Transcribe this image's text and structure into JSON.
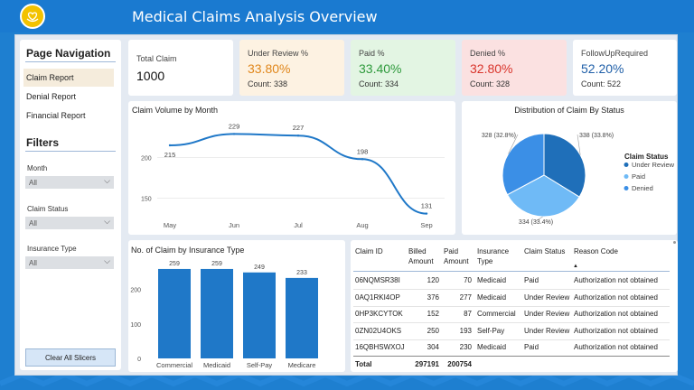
{
  "header": {
    "title": "Medical Claims Analysis Overview",
    "logo_icon": "heart-hands-icon"
  },
  "colors": {
    "accent": "#1a7ad0",
    "review_bg": "#fdf2e2",
    "paid_bg": "#e3f5e3",
    "denied_bg": "#fbe1e1",
    "bar": "#1f78c8",
    "line": "#1f78c8"
  },
  "sidebar": {
    "nav_title": "Page Navigation",
    "nav": [
      {
        "label": "Claim Report",
        "active": true
      },
      {
        "label": "Denial Report"
      },
      {
        "label": "Financial Report"
      }
    ],
    "filters_title": "Filters",
    "filters": [
      {
        "label": "Month",
        "value": "All"
      },
      {
        "label": "Claim Status",
        "value": "All"
      },
      {
        "label": "Insurance Type",
        "value": "All"
      }
    ],
    "clear_label": "Clear All Slicers"
  },
  "kpis": {
    "total": {
      "label": "Total Claim",
      "value": "1000"
    },
    "review": {
      "label": "Under Review %",
      "value": "33.80%",
      "count": "Count: 338",
      "color": "#e0861a"
    },
    "paid": {
      "label": "Paid %",
      "value": "33.40%",
      "count": "Count: 334",
      "color": "#2e9a3c"
    },
    "denied": {
      "label": "Denied %",
      "value": "32.80%",
      "count": "Count: 328",
      "color": "#d9342b"
    },
    "followup": {
      "label": "FollowUpRequired",
      "value": "52.20%",
      "count": "Count: 522",
      "color": "#1f5fa8"
    }
  },
  "line_chart": {
    "title": "Claim Volume by Month"
  },
  "pie_chart": {
    "title": "Distribution of Claim By Status",
    "legend_title": "Claim Status",
    "slice_labels": [
      "338 (33.8%)",
      "334 (33.4%)",
      "328 (32.8%)"
    ]
  },
  "bar_chart": {
    "title": "No. of Claim by Insurance Type"
  },
  "chart_data": [
    {
      "type": "line",
      "title": "Claim Volume by Month",
      "x": [
        "May",
        "Jun",
        "Jul",
        "Aug",
        "Sep"
      ],
      "series": [
        {
          "values": [
            215,
            229,
            227,
            198,
            131
          ]
        }
      ],
      "yticks": [
        150,
        200
      ],
      "ylim": [
        125,
        245
      ],
      "grid": true
    },
    {
      "type": "pie",
      "title": "Distribution of Claim By Status",
      "categories": [
        "Under Review",
        "Paid",
        "Denied"
      ],
      "values": [
        338,
        334,
        328
      ],
      "colors": [
        "#1f6fb9",
        "#6fbaf6",
        "#3b8fe6"
      ],
      "legend": "right"
    },
    {
      "type": "bar",
      "title": "No. of Claim by Insurance Type",
      "categories": [
        "Commercial",
        "Medicaid",
        "Self-Pay",
        "Medicare"
      ],
      "values": [
        259,
        259,
        249,
        233
      ],
      "yticks": [
        0,
        100,
        200
      ],
      "ylim": [
        0,
        285
      ]
    }
  ],
  "table": {
    "columns": [
      "Claim ID",
      "Billed Amount",
      "Paid Amount",
      "Insurance Type",
      "Claim Status",
      "Reason Code"
    ],
    "rows": [
      [
        "06NQMSR38I",
        "120",
        "70",
        "Medicaid",
        "Paid",
        "Authorization not obtained"
      ],
      [
        "0AQ1RKI4OP",
        "376",
        "277",
        "Medicaid",
        "Under Review",
        "Authorization not obtained"
      ],
      [
        "0HP3KCYTOK",
        "152",
        "87",
        "Commercial",
        "Under Review",
        "Authorization not obtained"
      ],
      [
        "0ZN02U4OKS",
        "250",
        "193",
        "Self-Pay",
        "Under Review",
        "Authorization not obtained"
      ],
      [
        "16QBHSWXOJ",
        "304",
        "230",
        "Medicaid",
        "Paid",
        "Authorization not obtained"
      ]
    ],
    "total": [
      "Total",
      "297191",
      "200754"
    ],
    "sort_icon": "sort-up-icon"
  }
}
